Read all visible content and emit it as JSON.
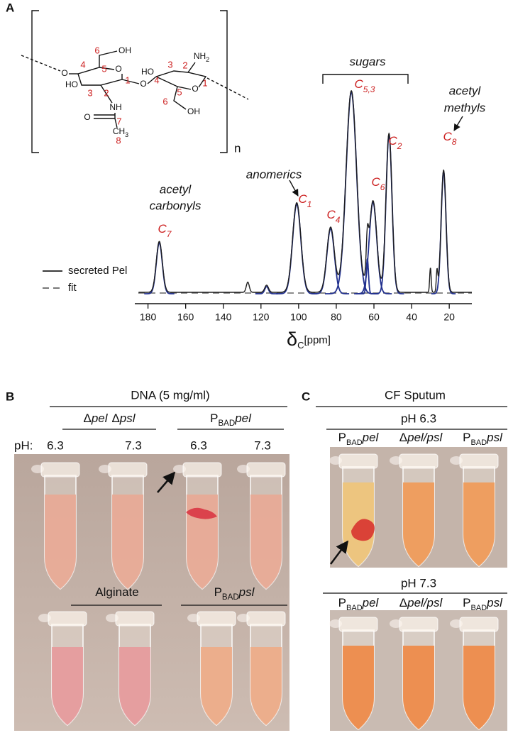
{
  "panel_a": {
    "label": "A",
    "structure": {
      "atoms": [
        {
          "text": "O"
        },
        {
          "text": "OH"
        },
        {
          "text": "O"
        },
        {
          "text": "HO"
        },
        {
          "text": "NH"
        },
        {
          "text": "O"
        },
        {
          "text": "CH",
          "sub": "3"
        },
        {
          "text": "O"
        },
        {
          "text": "HO"
        },
        {
          "text": "NH",
          "sub": "2"
        },
        {
          "text": "O"
        },
        {
          "text": "OH"
        }
      ],
      "carbons": [
        "6",
        "5",
        "4",
        "3",
        "2",
        "1",
        "7",
        "8",
        "3",
        "2",
        "4",
        "5",
        "1",
        "6"
      ],
      "repeat": "n",
      "carbon_color": "#cc1f1f"
    },
    "chart_data": {
      "type": "nmr",
      "x_label": {
        "symbol": "δ",
        "sub": "C",
        "unit": "[ppm]"
      },
      "xlim": [
        187,
        8
      ],
      "xticks": [
        180,
        160,
        140,
        120,
        100,
        80,
        60,
        40,
        20
      ],
      "legend": {
        "measured": "secreted Pel",
        "fit": "fit"
      },
      "colors": {
        "measured": "#1e1e1e",
        "fit": "#22318f",
        "fit_baseline": "#666666",
        "labels": "#cc1f1f"
      },
      "fit_peaks": [
        {
          "ppm": 174,
          "intensity": 25,
          "width": 1.6
        },
        {
          "ppm": 117,
          "intensity": 3.5,
          "width": 1.0
        },
        {
          "ppm": 101,
          "intensity": 44,
          "width": 2.2
        },
        {
          "ppm": 83,
          "intensity": 32,
          "width": 2.0
        },
        {
          "ppm": 72,
          "intensity": 99,
          "width": 2.8
        },
        {
          "ppm": 60.5,
          "intensity": 45,
          "width": 2.0
        },
        {
          "ppm": 63.5,
          "intensity": 17,
          "width": 0.6
        },
        {
          "ppm": 52,
          "intensity": 78,
          "width": 1.6
        },
        {
          "ppm": 23,
          "intensity": 60,
          "width": 1.3
        }
      ],
      "extra_peaks": [
        {
          "ppm": 127,
          "intensity": 5,
          "width": 0.8
        },
        {
          "ppm": 30,
          "intensity": 12,
          "width": 0.4
        },
        {
          "ppm": 26.5,
          "intensity": 10,
          "width": 0.4
        }
      ],
      "peak_labels": [
        {
          "text": "C",
          "sub": "7"
        },
        {
          "text": "C",
          "sub": "1"
        },
        {
          "text": "C",
          "sub": "4"
        },
        {
          "text": "C",
          "sub": "5,3"
        },
        {
          "text": "C",
          "sub": "6"
        },
        {
          "text": "C",
          "sub": "2"
        },
        {
          "text": "C",
          "sub": "8"
        }
      ],
      "annotations": [
        "acetyl",
        "carbonyls",
        "anomerics",
        "sugars",
        "acetyl",
        "methyls"
      ]
    }
  },
  "panel_b": {
    "label": "B",
    "title": "DNA (5 mg/ml)",
    "groups": [
      {
        "strains": [
          {
            "delta": "Δ",
            "gene": "pel"
          },
          {
            "delta": "Δ",
            "gene": "psl"
          }
        ]
      },
      {
        "strains": [
          {
            "promoter": "P",
            "promoter_sub": "BAD",
            "gene": "pel"
          }
        ]
      }
    ],
    "ph_label": "pH:",
    "ph_values": [
      "6.3",
      "7.3",
      "6.3",
      "7.3"
    ],
    "bottom_groups": [
      {
        "strains": [
          {
            "text": "Alginate"
          }
        ]
      },
      {
        "strains": [
          {
            "promoter": "P",
            "promoter_sub": "BAD",
            "gene": "psl"
          }
        ]
      }
    ]
  },
  "panel_c": {
    "label": "C",
    "title": "CF Sputum",
    "conditions": [
      {
        "title": "pH 6.3",
        "strains": [
          {
            "promoter": "P",
            "promoter_sub": "BAD",
            "gene": "pel"
          },
          {
            "delta": "Δ",
            "gene": "pel/psl"
          },
          {
            "promoter": "P",
            "promoter_sub": "BAD",
            "gene": "psl"
          }
        ]
      },
      {
        "title": "pH 7.3",
        "strains": [
          {
            "promoter": "P",
            "promoter_sub": "BAD",
            "gene": "pel"
          },
          {
            "delta": "Δ",
            "gene": "pel/psl"
          },
          {
            "promoter": "P",
            "promoter_sub": "BAD",
            "gene": "psl"
          }
        ]
      }
    ]
  }
}
